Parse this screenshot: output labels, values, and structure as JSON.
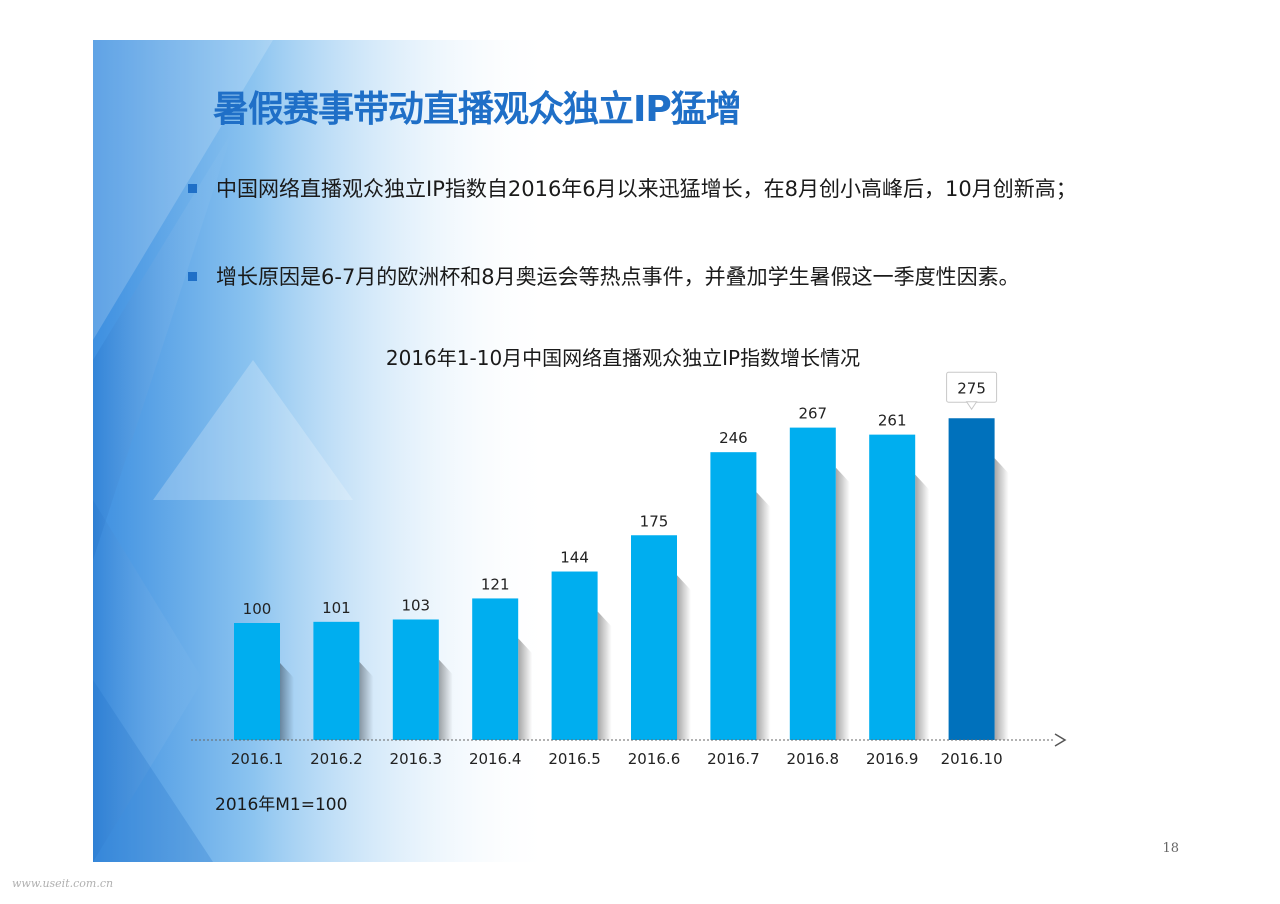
{
  "slide": {
    "title": "暑假赛事带动直播观众独立IP猛增",
    "bullets": [
      "中国网络直播观众独立IP指数自2016年6月以来迅猛增长，在8月创小高峰后，10月创新高；",
      "增长原因是6-7月的欧洲杯和8月奥运会等热点事件，并叠加学生暑假这一季度性因素。"
    ],
    "note": "2016年M1=100",
    "page_number": "18",
    "watermark": "www.useit.com.cn"
  },
  "colors": {
    "accent": "#1f6fc7",
    "bar": "#00aeef",
    "bar_highlight": "#0071bc"
  },
  "chart_data": {
    "type": "bar",
    "title": "2016年1-10月中国网络直播观众独立IP指数增长情况",
    "categories": [
      "2016.1",
      "2016.2",
      "2016.3",
      "2016.4",
      "2016.5",
      "2016.6",
      "2016.7",
      "2016.8",
      "2016.9",
      "2016.10"
    ],
    "values": [
      100,
      101,
      103,
      121,
      144,
      175,
      246,
      267,
      261,
      275
    ],
    "highlight_index": 9,
    "ylim": [
      0,
      300
    ],
    "xlabel": "",
    "ylabel": "",
    "grid": false,
    "legend": "none"
  }
}
